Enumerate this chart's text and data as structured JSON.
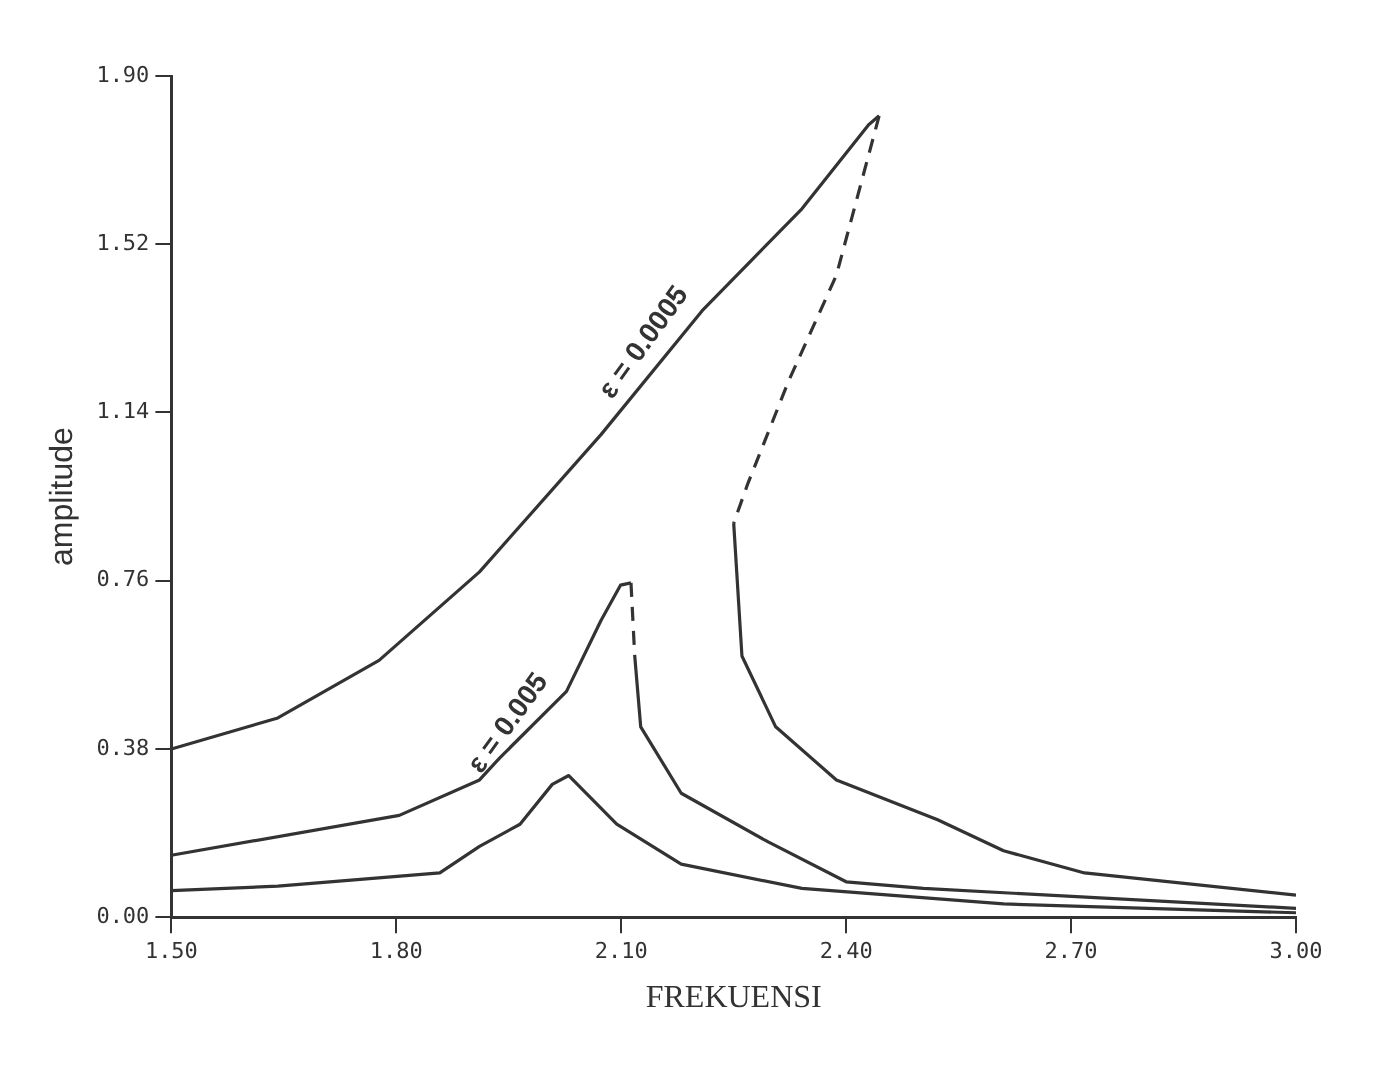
{
  "chart_data": {
    "type": "line",
    "xlabel": "FREKUENSI",
    "ylabel": "amplitude",
    "xlim": [
      1.5,
      3.0
    ],
    "xticks": [
      {
        "value": 1.5,
        "label": "1.50"
      },
      {
        "value": 1.8,
        "label": "1.80"
      },
      {
        "value": 2.1,
        "label": "2.10"
      },
      {
        "value": 2.4,
        "label": "2.40"
      },
      {
        "value": 2.7,
        "label": "2.70"
      },
      {
        "value": 3.0,
        "label": "3.00"
      }
    ],
    "ylim": [
      0,
      1.9
    ],
    "yticks": [
      {
        "value": 0,
        "label": "0.00"
      },
      0.38,
      0.76,
      1.14,
      1.52,
      {
        "value": 1.9,
        "label": "1.90"
      }
    ],
    "grid": false,
    "legend": false,
    "marker": "none",
    "series": [
      {
        "color": "#333333",
        "line_style": "solid",
        "x": [
          1.5,
          1.642,
          1.777,
          1.911,
          2.073,
          2.208,
          2.341,
          2.43,
          2.444
        ],
        "values": [
          0.38,
          0.45,
          0.58,
          0.78,
          1.09,
          1.37,
          1.6,
          1.79,
          1.81
        ]
      },
      {
        "color": "#333333",
        "line_style": "dashed",
        "x": [
          2.444,
          2.387,
          2.323,
          2.269,
          2.25
        ],
        "values": [
          1.81,
          1.45,
          1.21,
          0.98,
          0.89
        ]
      },
      {
        "color": "#333333",
        "line_style": "solid",
        "x": [
          2.25,
          2.261,
          2.306,
          2.387,
          2.522,
          2.61,
          2.718,
          3.0
        ],
        "values": [
          0.89,
          0.59,
          0.43,
          0.31,
          0.22,
          0.15,
          0.1,
          0.05
        ]
      },
      {
        "color": "#333333",
        "line_style": "solid",
        "x": [
          1.5,
          1.804,
          1.911,
          1.938,
          2.027,
          2.073,
          2.099,
          2.113
        ],
        "values": [
          0.14,
          0.23,
          0.31,
          0.36,
          0.51,
          0.67,
          0.75,
          0.755
        ]
      },
      {
        "color": "#333333",
        "line_style": "dashed",
        "x": [
          2.113,
          2.118
        ],
        "values": [
          0.755,
          0.59
        ]
      },
      {
        "color": "#333333",
        "line_style": "solid",
        "x": [
          2.118,
          2.126,
          2.18,
          2.296,
          2.4,
          2.503,
          3.0
        ],
        "values": [
          0.59,
          0.43,
          0.28,
          0.17,
          0.08,
          0.065,
          0.02
        ]
      },
      {
        "color": "#333333",
        "line_style": "solid",
        "x": [
          1.5,
          1.642,
          1.858,
          1.911,
          1.965,
          2.008,
          2.03,
          2.094,
          2.18,
          2.341,
          2.61,
          3.0
        ],
        "values": [
          0.06,
          0.07,
          0.1,
          0.16,
          0.21,
          0.3,
          0.32,
          0.21,
          0.12,
          0.065,
          0.03,
          0.01
        ]
      }
    ],
    "annotations": [
      {
        "text": "ε = 0.0005",
        "x": 2.208,
        "y": 1.37
      },
      {
        "text": "ε = 0.005",
        "x": 2.027,
        "y": 0.51
      }
    ]
  }
}
